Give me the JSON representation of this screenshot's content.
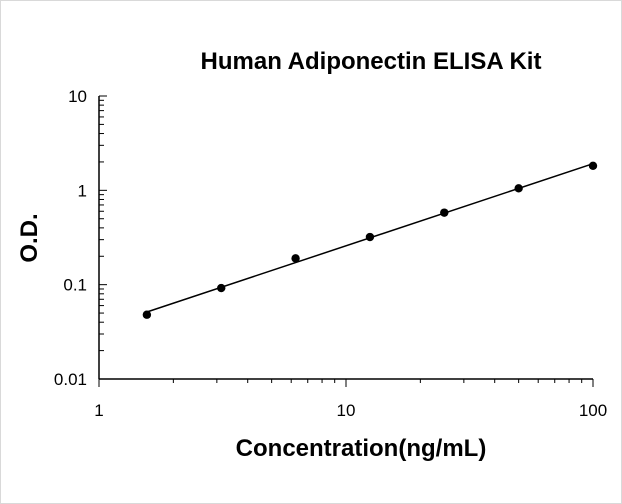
{
  "chart_data": {
    "type": "scatter",
    "title": "Human Adiponectin ELISA Kit",
    "xlabel": "Concentration(ng/mL)",
    "ylabel": "O.D.",
    "xscale": "log",
    "yscale": "log",
    "xlim": [
      1,
      100
    ],
    "ylim": [
      0.01,
      10
    ],
    "x_ticks": [
      "1",
      "10",
      "100"
    ],
    "y_ticks": [
      "10",
      "1",
      "0.1",
      "0.01"
    ],
    "grid": false,
    "legend": "none",
    "series": [
      {
        "x": [
          1.5625,
          3.125,
          6.25,
          12.5,
          25,
          50,
          100
        ],
        "y": [
          0.048,
          0.092,
          0.19,
          0.32,
          0.58,
          1.05,
          1.82
        ],
        "fit_line": true,
        "color": "#000000"
      }
    ]
  }
}
